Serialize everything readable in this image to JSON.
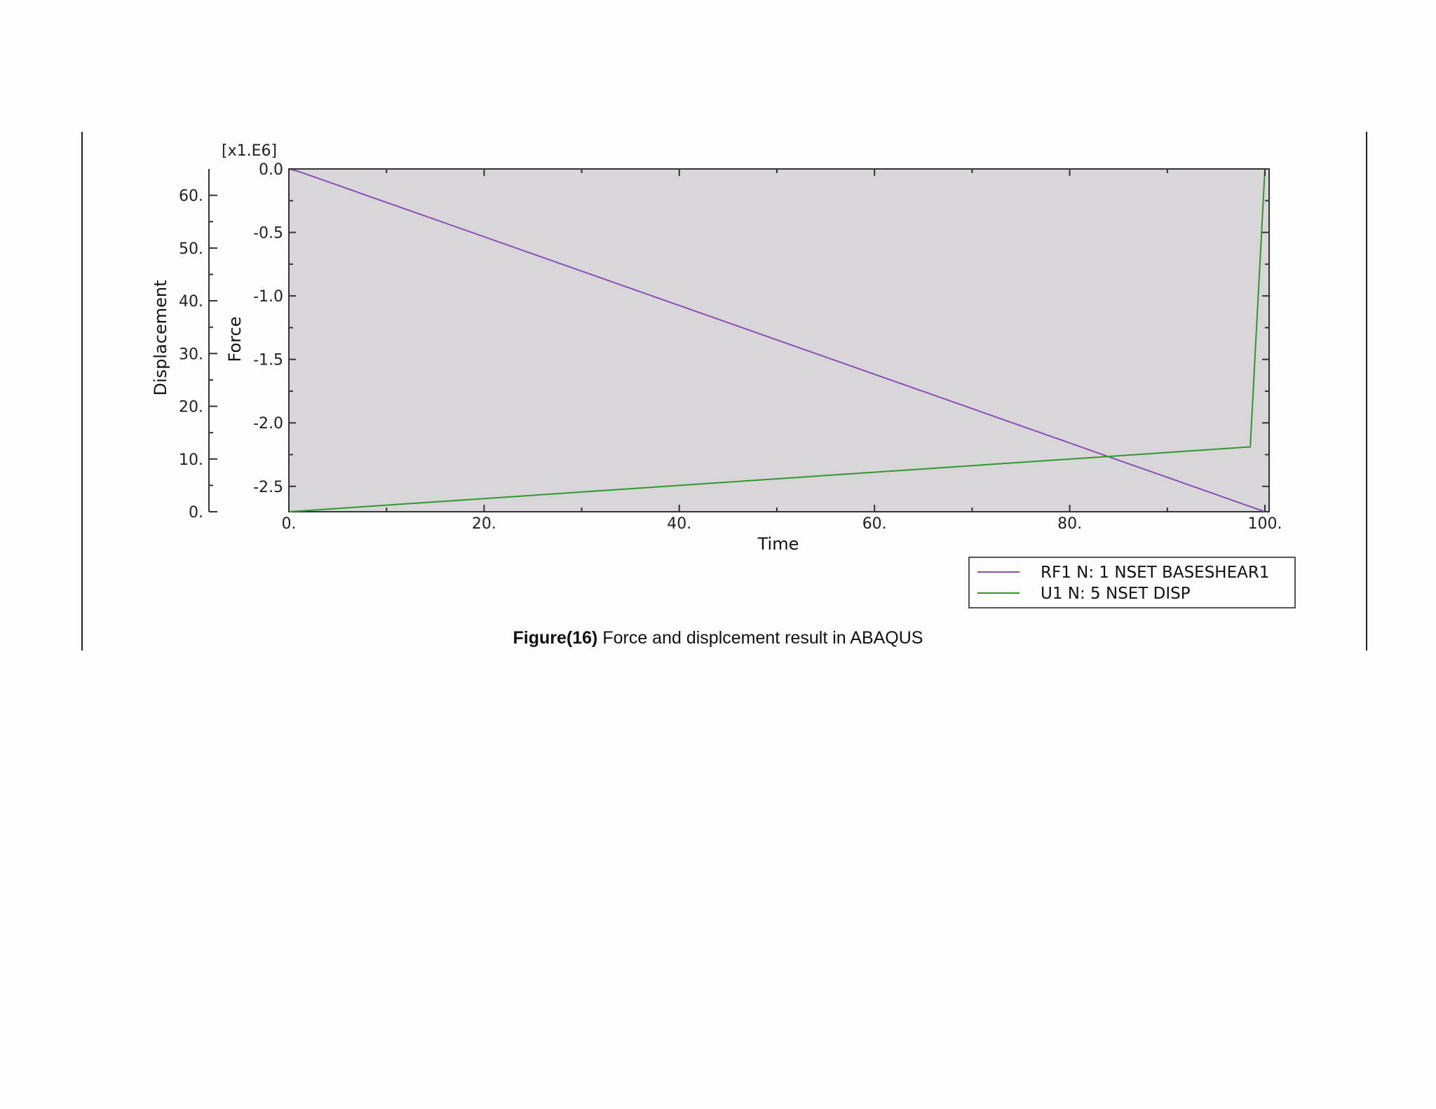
{
  "caption": {
    "label": "Figure(16)",
    "text": " Force and displcement result in ABAQUS"
  },
  "chart_data": {
    "type": "line",
    "xlabel": "Time",
    "xlim": [
      0,
      100
    ],
    "x_ticks": [
      "0.",
      "20.",
      "40.",
      "60.",
      "80.",
      "100."
    ],
    "y_force_label": "Force",
    "y_force_multiplier": "[x1.E6]",
    "y_force_lim": [
      -2.7,
      0
    ],
    "y_force_ticks": [
      "0.0",
      "-0.5",
      "-1.0",
      "-1.5",
      "-2.0",
      "-2.5"
    ],
    "y_disp_label": "Displacement",
    "y_disp_lim": [
      0,
      65
    ],
    "y_disp_ticks": [
      "0.",
      "10.",
      "20.",
      "30.",
      "40.",
      "50.",
      "60."
    ],
    "plot_background": "#d8d6d8",
    "legend_position": "bottom-right",
    "series": [
      {
        "name": "RF1 N: 1 NSET BASESHEAR1",
        "axis": "force",
        "color": "#8a4fb8",
        "x": [
          0,
          1,
          100
        ],
        "y": [
          0,
          -0.02,
          -2.7
        ]
      },
      {
        "name": "U1 N: 5 NSET DISP",
        "axis": "displacement",
        "color": "#2e9a2e",
        "x": [
          0,
          98.5,
          100
        ],
        "y": [
          0,
          12.3,
          65
        ]
      }
    ]
  }
}
